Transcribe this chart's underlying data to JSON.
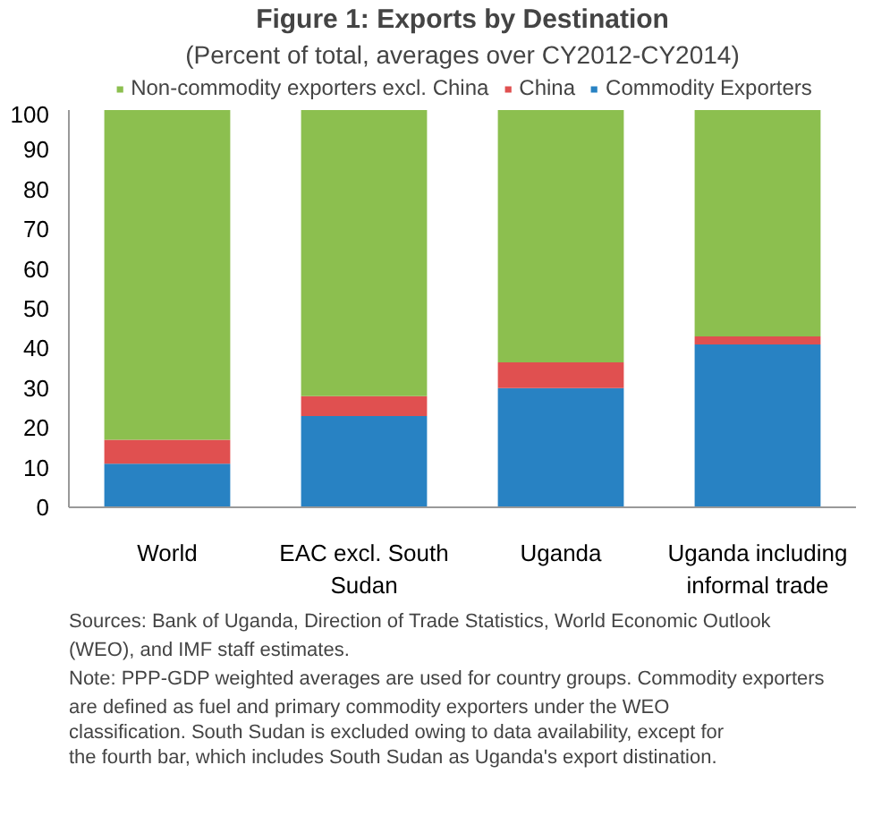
{
  "chart_data": {
    "type": "bar",
    "title": "Figure 1: Exports by Destination",
    "subtitle": "(Percent of total, averages over CY2012-CY2014)",
    "categories": [
      "World",
      "EAC excl. South Sudan",
      "Uganda",
      "Uganda including informal trade"
    ],
    "stacked": true,
    "series": [
      {
        "name": "Commodity Exporters",
        "color": "#2882c3",
        "values": [
          11,
          23,
          30,
          41
        ]
      },
      {
        "name": "China",
        "color": "#e05050",
        "values": [
          6,
          5,
          6.5,
          2
        ]
      },
      {
        "name": "Non-commodity exporters excl. China",
        "color": "#8cbf4f",
        "values": [
          83,
          72,
          63.5,
          57
        ]
      }
    ],
    "ylim": [
      0,
      100
    ],
    "yticks": [
      0,
      10,
      20,
      30,
      40,
      50,
      60,
      70,
      80,
      90,
      100
    ],
    "grid": false,
    "legend": "top",
    "annotations": [
      "Sources: Bank of Uganda, Direction of Trade Statistics, World Economic Outlook (WEO), and IMF staff estimates.",
      "Note: PPP-GDP weighted averages are used for country groups. Commodity exporters are defined as fuel and primary commodity exporters under the WEO classification. South Sudan is excluded owing to data availability, except for the fourth bar, which includes South Sudan as Uganda's export distination."
    ]
  }
}
